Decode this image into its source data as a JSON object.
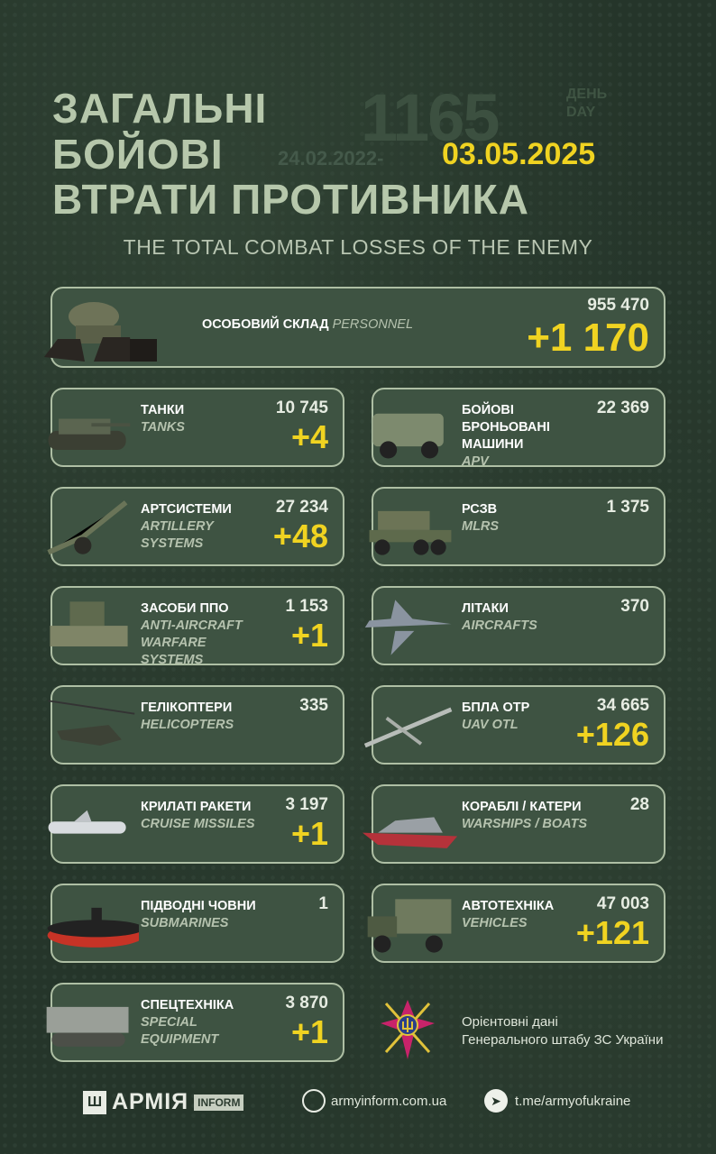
{
  "header": {
    "title_lines": [
      "ЗАГАЛЬНІ",
      "БОЙОВІ",
      "ВТРАТИ ПРОТИВНИКА"
    ],
    "day_number": "1165",
    "day_ua": "ДЕНЬ",
    "day_en": "DAY",
    "range_start": "24.02.2022-",
    "date": "03.05.2025",
    "subtitle": "THE TOTAL COMBAT LOSSES OF THE ENEMY"
  },
  "colors": {
    "background": "#25352a",
    "card": "#3e5342",
    "accent": "#f0d321",
    "title": "#b6c7ab"
  },
  "personnel": {
    "label": "ОСОБОВИЙ СКЛАД",
    "label_en": "PERSONNEL",
    "total": "955 470",
    "delta": "+1 170",
    "icon": "soldier-boots-icon"
  },
  "cards": [
    {
      "label": "ТАНКИ",
      "en": "TANKS",
      "total": "10 745",
      "delta": "+4",
      "icon": "tank-icon"
    },
    {
      "label": "БОЙОВІ БРОНЬОВАНІ МАШИНИ",
      "en": "APV",
      "total": "22 369",
      "delta": "",
      "icon": "armored-vehicle-icon"
    },
    {
      "label": "АРТСИСТЕМИ",
      "en": "ARTILLERY SYSTEMS",
      "total": "27 234",
      "delta": "+48",
      "icon": "artillery-icon"
    },
    {
      "label": "РСЗВ",
      "en": "MLRS",
      "total": "1 375",
      "delta": "",
      "icon": "mlrs-icon"
    },
    {
      "label": "ЗАСОБИ ППО",
      "en": "ANTI-AIRCRAFT WARFARE SYSTEMS",
      "total": "1 153",
      "delta": "+1",
      "icon": "anti-aircraft-icon"
    },
    {
      "label": "ЛІТАКИ",
      "en": "AIRCRAFTS",
      "total": "370",
      "delta": "",
      "icon": "aircraft-icon"
    },
    {
      "label": "ГЕЛІКОПТЕРИ",
      "en": "HELICOPTERS",
      "total": "335",
      "delta": "",
      "icon": "helicopter-icon"
    },
    {
      "label": "БПЛА ОТР",
      "en": "UAV OTL",
      "total": "34 665",
      "delta": "+126",
      "icon": "drone-icon"
    },
    {
      "label": "КРИЛАТІ РАКЕТИ",
      "en": "CRUISE MISSILES",
      "total": "3 197",
      "delta": "+1",
      "icon": "missile-icon"
    },
    {
      "label": "КОРАБЛІ / КАТЕРИ",
      "en": "WARSHIPS / BOATS",
      "total": "28",
      "delta": "",
      "icon": "warship-icon"
    },
    {
      "label": "ПІДВОДНІ ЧОВНИ",
      "en": "SUBMARINES",
      "total": "1",
      "delta": "",
      "icon": "submarine-icon"
    },
    {
      "label": "АВТОТЕХНІКА",
      "en": "VEHICLES",
      "total": "47 003",
      "delta": "+121",
      "icon": "truck-icon"
    },
    {
      "label": "СПЕЦТЕХНІКА",
      "en": "SPECIAL EQUIPMENT",
      "total": "3 870",
      "delta": "+1",
      "icon": "special-equipment-icon"
    }
  ],
  "source": {
    "line1": "Орієнтовні дані",
    "line2": "Генерального штабу ЗС України"
  },
  "footer": {
    "brand": "АРМІЯ",
    "brand_tag": "INFORM",
    "website": "armyinform.com.ua",
    "telegram": "t.me/armyofukraine"
  }
}
